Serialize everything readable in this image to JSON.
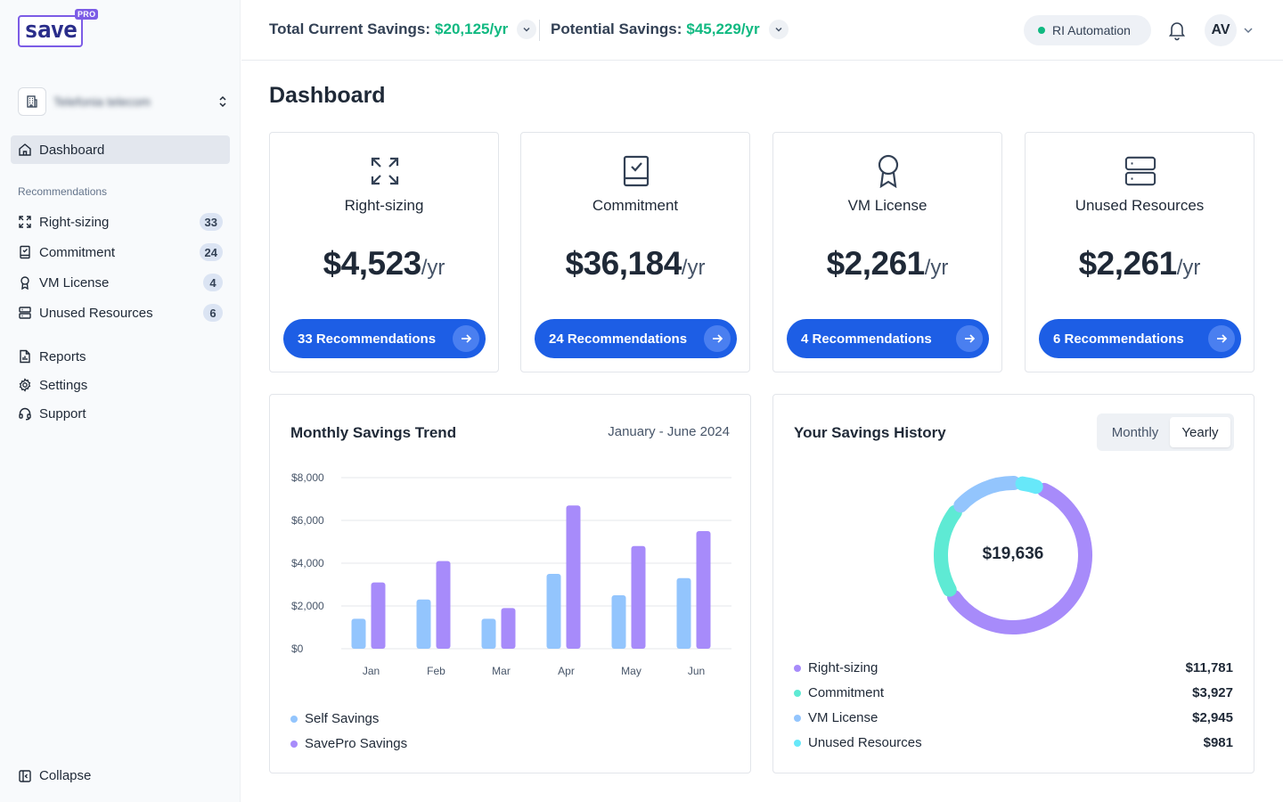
{
  "logo": {
    "text": "save",
    "badge": "PRO"
  },
  "org": {
    "name": "Telefonia telecom"
  },
  "sidebar": {
    "dashboard": "Dashboard",
    "section_label": "Recommendations",
    "recommendations": [
      {
        "label": "Right-sizing",
        "count": "33",
        "icon": "expand-arrows-icon"
      },
      {
        "label": "Commitment",
        "count": "24",
        "icon": "book-check-icon"
      },
      {
        "label": "VM License",
        "count": "4",
        "icon": "award-icon"
      },
      {
        "label": "Unused Resources",
        "count": "6",
        "icon": "server-icon"
      }
    ],
    "reports": "Reports",
    "settings": "Settings",
    "support": "Support",
    "collapse": "Collapse"
  },
  "header": {
    "total_label": "Total Current Savings:",
    "total_value": "$20,125/yr",
    "potential_label": "Potential Savings:",
    "potential_value": "$45,229/yr",
    "ri_automation": "RI Automation",
    "avatar_initials": "AV"
  },
  "page_title": "Dashboard",
  "cards": [
    {
      "title": "Right-sizing",
      "amount": "$4,523",
      "unit": "/yr",
      "button": "33 Recommendations"
    },
    {
      "title": "Commitment",
      "amount": "$36,184",
      "unit": "/yr",
      "button": "24 Recommendations"
    },
    {
      "title": "VM License",
      "amount": "$2,261",
      "unit": "/yr",
      "button": "4 Recommendations"
    },
    {
      "title": "Unused Resources",
      "amount": "$2,261",
      "unit": "/yr",
      "button": "6 Recommendations"
    }
  ],
  "trend": {
    "title": "Monthly Savings Trend",
    "range": "January - June 2024",
    "legend": [
      "Self Savings",
      "SavePro Savings"
    ]
  },
  "history": {
    "title": "Your Savings History",
    "toggle": [
      "Monthly",
      "Yearly"
    ],
    "selected": "Yearly",
    "total": "$19,636",
    "items": [
      {
        "name": "Right-sizing",
        "value": "$11,781"
      },
      {
        "name": "Commitment",
        "value": "$3,927"
      },
      {
        "name": "VM License",
        "value": "$2,945"
      },
      {
        "name": "Unused Resources",
        "value": "$981"
      }
    ]
  },
  "colors": {
    "accent": "#1d5ee5",
    "green": "#10b981",
    "self_savings": "#93c5fd",
    "savepro_savings": "#a78bfa",
    "commitment": "#5eead4",
    "vm_license": "#93c5fd",
    "unused": "#67e8f9"
  },
  "chart_data": [
    {
      "type": "bar",
      "title": "Monthly Savings Trend",
      "categories": [
        "Jan",
        "Feb",
        "Mar",
        "Apr",
        "May",
        "Jun"
      ],
      "series": [
        {
          "name": "Self Savings",
          "values": [
            1400,
            2300,
            1400,
            3500,
            2500,
            3300
          ]
        },
        {
          "name": "SavePro Savings",
          "values": [
            3100,
            4100,
            1900,
            6700,
            4800,
            5500
          ]
        }
      ],
      "ylim": [
        0,
        8000
      ],
      "yticks": [
        "$0",
        "$2,000",
        "$4,000",
        "$6,000",
        "$8,000"
      ],
      "ytick_values": [
        0,
        2000,
        4000,
        6000,
        8000
      ],
      "grid": true,
      "legend": "bottom-left"
    },
    {
      "type": "pie",
      "title": "Your Savings History",
      "center_label": "$19,636",
      "labels": [
        "Right-sizing",
        "Commitment",
        "VM License",
        "Unused Resources"
      ],
      "values": [
        11781,
        3927,
        2945,
        981
      ],
      "colors": [
        "#a78bfa",
        "#5eead4",
        "#93c5fd",
        "#67e8f9"
      ]
    }
  ]
}
